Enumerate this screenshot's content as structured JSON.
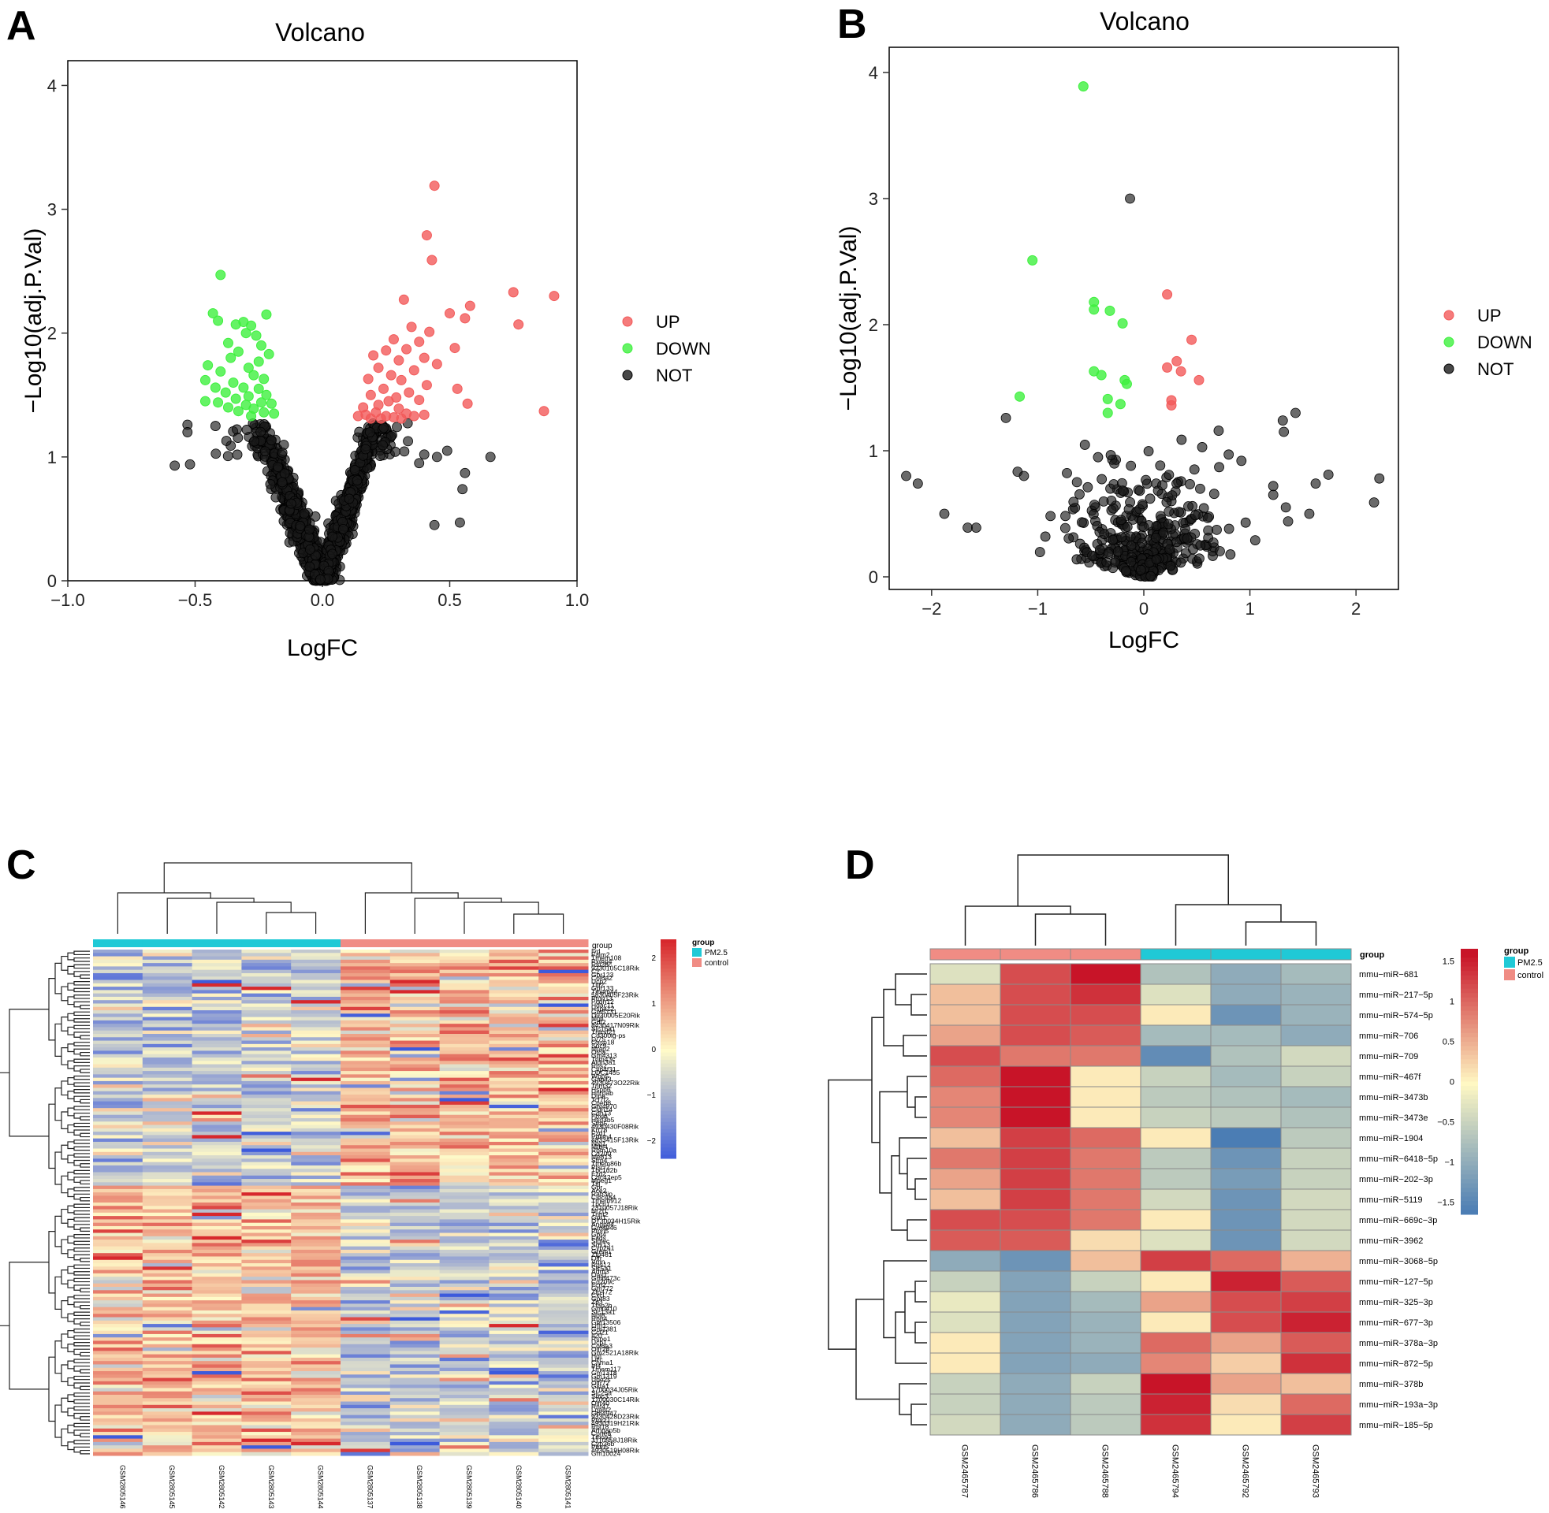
{
  "panels": {
    "A": {
      "label": "A"
    },
    "B": {
      "label": "B"
    },
    "C": {
      "label": "C"
    },
    "D": {
      "label": "D"
    }
  },
  "colors": {
    "up": "#f25a5a",
    "down": "#3ef03e",
    "not": "#1a1a1a",
    "pm25": "#20c9d6",
    "control": "#f08c84"
  },
  "chart_data": [
    {
      "id": "A",
      "type": "scatter",
      "title": "Volcano",
      "xlabel": "LogFC",
      "ylabel": "−Log10(adj.P.Val)",
      "xlim": [
        -1.0,
        1.0
      ],
      "ylim": [
        0,
        4.2
      ],
      "xticks": [
        "−1.0",
        "−0.5",
        "0.0",
        "0.5",
        "1.0"
      ],
      "xtick_values": [
        -1.0,
        -0.5,
        0.0,
        0.5,
        1.0
      ],
      "yticks": [
        "0",
        "1",
        "2",
        "3",
        "4"
      ],
      "ytick_values": [
        0,
        1,
        2,
        3,
        4
      ],
      "legend": [
        "UP",
        "DOWN",
        "NOT"
      ],
      "legend_position": "right",
      "series": [
        {
          "name": "UP",
          "points": [
            [
              0.44,
              3.19
            ],
            [
              0.41,
              2.79
            ],
            [
              0.43,
              2.59
            ],
            [
              0.75,
              2.33
            ],
            [
              0.91,
              2.3
            ],
            [
              0.32,
              2.27
            ],
            [
              0.58,
              2.22
            ],
            [
              0.5,
              2.16
            ],
            [
              0.56,
              2.12
            ],
            [
              0.77,
              2.07
            ],
            [
              0.35,
              2.05
            ],
            [
              0.42,
              2.01
            ],
            [
              0.28,
              1.95
            ],
            [
              0.38,
              1.93
            ],
            [
              0.33,
              1.87
            ],
            [
              0.25,
              1.86
            ],
            [
              0.52,
              1.88
            ],
            [
              0.4,
              1.8
            ],
            [
              0.3,
              1.78
            ],
            [
              0.2,
              1.82
            ],
            [
              0.45,
              1.75
            ],
            [
              0.36,
              1.7
            ],
            [
              0.22,
              1.72
            ],
            [
              0.27,
              1.66
            ],
            [
              0.31,
              1.62
            ],
            [
              0.18,
              1.63
            ],
            [
              0.41,
              1.58
            ],
            [
              0.24,
              1.55
            ],
            [
              0.34,
              1.52
            ],
            [
              0.53,
              1.55
            ],
            [
              0.29,
              1.48
            ],
            [
              0.19,
              1.5
            ],
            [
              0.26,
              1.45
            ],
            [
              0.38,
              1.46
            ],
            [
              0.22,
              1.42
            ],
            [
              0.16,
              1.4
            ],
            [
              0.3,
              1.39
            ],
            [
              0.57,
              1.43
            ],
            [
              0.87,
              1.37
            ],
            [
              0.21,
              1.36
            ],
            [
              0.33,
              1.35
            ],
            [
              0.25,
              1.33
            ],
            [
              0.17,
              1.34
            ],
            [
              0.4,
              1.34
            ],
            [
              0.28,
              1.32
            ],
            [
              0.14,
              1.33
            ],
            [
              0.36,
              1.33
            ],
            [
              0.23,
              1.31
            ],
            [
              0.19,
              1.31
            ],
            [
              0.31,
              1.31
            ]
          ]
        },
        {
          "name": "DOWN",
          "points": [
            [
              -0.4,
              2.47
            ],
            [
              -0.43,
              2.16
            ],
            [
              -0.22,
              2.15
            ],
            [
              -0.34,
              2.07
            ],
            [
              -0.31,
              2.09
            ],
            [
              -0.41,
              2.1
            ],
            [
              -0.28,
              2.06
            ],
            [
              -0.3,
              2.0
            ],
            [
              -0.26,
              1.98
            ],
            [
              -0.37,
              1.92
            ],
            [
              -0.24,
              1.9
            ],
            [
              -0.33,
              1.85
            ],
            [
              -0.21,
              1.83
            ],
            [
              -0.36,
              1.8
            ],
            [
              -0.25,
              1.77
            ],
            [
              -0.45,
              1.74
            ],
            [
              -0.29,
              1.72
            ],
            [
              -0.4,
              1.69
            ],
            [
              -0.27,
              1.66
            ],
            [
              -0.46,
              1.62
            ],
            [
              -0.23,
              1.63
            ],
            [
              -0.35,
              1.6
            ],
            [
              -0.31,
              1.56
            ],
            [
              -0.42,
              1.56
            ],
            [
              -0.25,
              1.55
            ],
            [
              -0.38,
              1.52
            ],
            [
              -0.22,
              1.5
            ],
            [
              -0.29,
              1.49
            ],
            [
              -0.34,
              1.47
            ],
            [
              -0.24,
              1.44
            ],
            [
              -0.41,
              1.44
            ],
            [
              -0.46,
              1.45
            ],
            [
              -0.3,
              1.42
            ],
            [
              -0.2,
              1.43
            ],
            [
              -0.37,
              1.4
            ],
            [
              -0.27,
              1.39
            ],
            [
              -0.33,
              1.37
            ],
            [
              -0.23,
              1.36
            ],
            [
              -0.19,
              1.35
            ],
            [
              -0.28,
              1.33
            ]
          ]
        }
      ],
      "not_series": {
        "name": "NOT",
        "cloud": true,
        "extra_points": [
          [
            -0.58,
            0.93
          ],
          [
            -0.52,
            0.94
          ],
          [
            -0.53,
            1.26
          ],
          [
            -0.53,
            1.2
          ],
          [
            -0.42,
            1.25
          ],
          [
            0.56,
            0.87
          ],
          [
            0.44,
            0.45
          ],
          [
            0.54,
            0.47
          ],
          [
            0.55,
            0.74
          ],
          [
            0.66,
            1.0
          ],
          [
            0.49,
            1.05
          ],
          [
            0.45,
            1.0
          ],
          [
            0.4,
            1.02
          ],
          [
            0.38,
            0.95
          ]
        ]
      }
    },
    {
      "id": "B",
      "type": "scatter",
      "title": "Volcano",
      "xlabel": "LogFC",
      "ylabel": "−Log10(adj.P.Val)",
      "xlim": [
        -2.4,
        2.4
      ],
      "ylim": [
        -0.1,
        4.2
      ],
      "xticks": [
        "−2",
        "−1",
        "0",
        "1",
        "2"
      ],
      "xtick_values": [
        -2,
        -1,
        0,
        1,
        2
      ],
      "yticks": [
        "0",
        "1",
        "2",
        "3",
        "4"
      ],
      "ytick_values": [
        0,
        1,
        2,
        3,
        4
      ],
      "legend": [
        "UP",
        "DOWN",
        "NOT"
      ],
      "legend_position": "right",
      "series": [
        {
          "name": "UP",
          "points": [
            [
              0.22,
              2.24
            ],
            [
              0.45,
              1.88
            ],
            [
              0.31,
              1.71
            ],
            [
              0.35,
              1.63
            ],
            [
              0.22,
              1.66
            ],
            [
              0.52,
              1.56
            ],
            [
              0.26,
              1.4
            ],
            [
              0.26,
              1.36
            ]
          ]
        },
        {
          "name": "DOWN",
          "points": [
            [
              -0.57,
              3.89
            ],
            [
              -1.05,
              2.51
            ],
            [
              -0.47,
              2.18
            ],
            [
              -0.47,
              2.12
            ],
            [
              -0.32,
              2.11
            ],
            [
              -0.2,
              2.01
            ],
            [
              -0.47,
              1.63
            ],
            [
              -0.4,
              1.6
            ],
            [
              -0.18,
              1.56
            ],
            [
              -0.16,
              1.53
            ],
            [
              -1.17,
              1.43
            ],
            [
              -0.34,
              1.41
            ],
            [
              -0.22,
              1.37
            ],
            [
              -0.34,
              1.3
            ]
          ]
        }
      ],
      "not_series": {
        "name": "NOT",
        "cloud": true,
        "extra_points": [
          [
            -0.13,
            3.0
          ],
          [
            -2.24,
            0.8
          ],
          [
            -2.13,
            0.74
          ],
          [
            -1.88,
            0.5
          ],
          [
            -1.66,
            0.39
          ],
          [
            -1.58,
            0.39
          ],
          [
            -1.3,
            1.26
          ],
          [
            -1.13,
            0.8
          ],
          [
            1.22,
            0.72
          ],
          [
            1.32,
            1.15
          ],
          [
            1.43,
            1.3
          ],
          [
            1.31,
            1.24
          ],
          [
            2.22,
            0.78
          ],
          [
            2.17,
            0.59
          ],
          [
            1.74,
            0.81
          ],
          [
            1.62,
            0.74
          ],
          [
            1.56,
            0.5
          ],
          [
            1.36,
            0.44
          ],
          [
            1.22,
            0.65
          ],
          [
            0.92,
            0.92
          ],
          [
            0.71,
            0.87
          ],
          [
            0.8,
            0.97
          ],
          [
            0.96,
            0.43
          ],
          [
            1.05,
            0.29
          ]
        ]
      }
    },
    {
      "id": "C",
      "type": "heatmap",
      "columns": [
        "GSM2805146",
        "GSM2805145",
        "GSM2805142",
        "GSM2805143",
        "GSM2805144",
        "GSM2805137",
        "GSM2805138",
        "GSM2805139",
        "GSM2805140",
        "GSM2805141"
      ],
      "column_groups": [
        "PM2.5",
        "PM2.5",
        "PM2.5",
        "PM2.5",
        "PM2.5",
        "control",
        "control",
        "control",
        "control",
        "control"
      ],
      "group_label": "group",
      "legend_groups": [
        "PM2.5",
        "control"
      ],
      "legend_title": "group",
      "colorbar_ticks": [
        "2",
        "1",
        "0",
        "−1",
        "−2"
      ],
      "colorbar_tick_values": [
        2,
        1,
        0,
        -1,
        -2
      ],
      "row_labels": [
        "Ivd",
        "Faim2",
        "Tmem108",
        "Pxmp4",
        "Rsl28c",
        "9230105C18Rik",
        "C2",
        "Gpr123",
        "Col6a2",
        "Ucp2",
        "Ttll2",
        "Gpr133",
        "Tmem44",
        "5830405F23Rik",
        "Ptpn13",
        "Pcdh12",
        "Hdac11",
        "Hspa12",
        "Gm5131",
        "D930005E20Rik",
        "Mgll",
        "Gdf2",
        "8430417N09Rik",
        "Slc16a1",
        "Tnfrsf21",
        "Cd300lg-ps",
        "Ly75",
        "Casp18",
        "Snc9",
        "Mtap2",
        "Otoa",
        "Gm4313",
        "Trim43c",
        "Aldh3a1",
        "Rps2",
        "Cyp4f31",
        "LOC1455",
        "Wbp5",
        "Gap43",
        "4930473O22Rik",
        "Trim32",
        "Hspb6",
        "Hnrpab",
        "Dtna",
        "Tcf7l2",
        "Cpeb8",
        "Gm4970",
        "Cldn14",
        "Cdh13",
        "Fbxl6",
        "Hsd3b5",
        "Sfrp5",
        "4930430F08Rik",
        "Krt78",
        "Fzd1",
        "Pdlim4",
        "4833415F13Rik",
        "Nrg1",
        "Mtbl4",
        "Rbm10a",
        "Cd200",
        "Me813",
        "Sfrp4",
        "Tmem86b",
        "Plscr2",
        "Tbc1d2b",
        "Fzd2",
        "Cdc42ep5",
        "Mpeg1",
        "Ttll",
        "Gpr",
        "Ace2",
        "Rab3ip",
        "Clec4a4",
        "Tmem912",
        "Tpcn1",
        "2310057J18Rik",
        "Nr2f1",
        "Tnnt2",
        "Gpr1",
        "D730034H15Rik",
        "Angptl4",
        "Gm4946",
        "Ptpn5",
        "Gpr4",
        "Fads",
        "Siglec",
        "Sox13",
        "Cyp2e1",
        "Grem1",
        "Zfp461",
        "Olfr",
        "Vmn",
        "Rgs12",
        "Slc5a1",
        "Adrb3",
        "Oas1",
        "Gm6473c",
        "Cd209c",
        "Fcrl2",
        "Gm772",
        "Zfp472",
        "Cxcl",
        "Gpr83",
        "Zp3",
        "Tfap2b",
        "Gm0410",
        "Slc13a1",
        "Nol8",
        "Rbp4",
        "Gm13506",
        "Lrfn1",
        "Gm1381",
        "Ccl21",
        "Il20",
        "Rspo1",
        "Ucp1",
        "Col6a3",
        "Olfr28",
        "Gm2521A18Rik",
        "Hgf",
        "Lrrc",
        "Chrna1",
        "Irf4",
        "Tmem117",
        "Gm1318",
        "Gm1319",
        "Ube2s",
        "Olfr72",
        "Gsta1",
        "1700034J05Rik",
        "Slc25a",
        "Smc3",
        "1700030C14Rik",
        "Olfr40",
        "Rnf47",
        "Lgals2",
        "Gm4947",
        "9330428D23Rik",
        "Ptprz1",
        "4930319H21Rik",
        "Rpl18",
        "Arhgap5b",
        "Cpne6",
        "Tmco2",
        "3110558J18Rik",
        "Cyp26b",
        "Ptpn5",
        "4930519H08Rik",
        "Gm10024"
      ],
      "row_labels_note": "dense gene row labels, many illegible; a representative subset is listed",
      "n_rows": 150,
      "n_cols": 10
    },
    {
      "id": "D",
      "type": "heatmap",
      "columns": [
        "GSM2465787",
        "GSM2465786",
        "GSM2465788",
        "GSM2465794",
        "GSM2465792",
        "GSM2465793"
      ],
      "column_groups": [
        "control",
        "control",
        "control",
        "PM2.5",
        "PM2.5",
        "PM2.5"
      ],
      "group_label": "group",
      "legend_groups": [
        "PM2.5",
        "control"
      ],
      "legend_title": "group",
      "colorbar_ticks": [
        "1.5",
        "1",
        "0.5",
        "0",
        "−0.5",
        "−1",
        "−1.5"
      ],
      "colorbar_tick_values": [
        1.5,
        1,
        0.5,
        0,
        -0.5,
        -1,
        -1.5
      ],
      "rows": [
        "mmu−miR−681",
        "mmu−miR−217−5p",
        "mmu−miR−574−5p",
        "mmu−miR−706",
        "mmu−miR−709",
        "mmu−miR−467f",
        "mmu−miR−3473b",
        "mmu−miR−3473e",
        "mmu−miR−1904",
        "mmu−miR−6418−5p",
        "mmu−miR−202−3p",
        "mmu−miR−5119",
        "mmu−miR−669c−3p",
        "mmu−miR−3962",
        "mmu−miR−3068−5p",
        "mmu−miR−127−5p",
        "mmu−miR−325−3p",
        "mmu−miR−677−3p",
        "mmu−miR−378a−3p",
        "mmu−miR−872−5p",
        "mmu−miR−378b",
        "mmu−miR−193a−3p",
        "mmu−miR−185−5p"
      ],
      "values": [
        [
          -0.3,
          1.2,
          1.6,
          -0.7,
          -1.0,
          -0.8
        ],
        [
          0.4,
          1.2,
          1.4,
          -0.3,
          -1.0,
          -0.9
        ],
        [
          0.4,
          1.2,
          1.2,
          0.1,
          -1.3,
          -0.9
        ],
        [
          0.6,
          1.2,
          1.1,
          -0.8,
          -0.8,
          -1.0
        ],
        [
          1.2,
          0.9,
          0.9,
          -1.4,
          -0.7,
          -0.4
        ],
        [
          1.0,
          1.6,
          0.1,
          -0.5,
          -0.8,
          -0.5
        ],
        [
          0.8,
          1.7,
          0.1,
          -0.6,
          -0.7,
          -0.8
        ],
        [
          0.8,
          1.7,
          0.1,
          -0.5,
          -0.6,
          -0.7
        ],
        [
          0.4,
          1.3,
          1.0,
          0.1,
          -1.6,
          -0.6
        ],
        [
          0.9,
          1.3,
          0.9,
          -0.6,
          -1.3,
          -0.5
        ],
        [
          0.6,
          1.3,
          0.9,
          -0.6,
          -1.2,
          -0.5
        ],
        [
          0.4,
          1.3,
          0.9,
          -0.4,
          -1.3,
          -0.4
        ],
        [
          1.2,
          1.2,
          0.9,
          0.1,
          -1.3,
          -0.4
        ],
        [
          1.1,
          1.1,
          0.2,
          -0.3,
          -1.3,
          -0.4
        ],
        [
          -1.0,
          -1.3,
          0.4,
          1.3,
          1.0,
          0.5
        ],
        [
          -0.5,
          -1.1,
          -0.5,
          0.1,
          1.5,
          1.1
        ],
        [
          -0.2,
          -1.1,
          -0.8,
          0.6,
          1.2,
          1.3
        ],
        [
          -0.3,
          -1.1,
          -0.9,
          0.1,
          1.2,
          1.5
        ],
        [
          0.1,
          -1.1,
          -0.9,
          1.0,
          0.6,
          1.1
        ],
        [
          0.1,
          -1.1,
          -1.0,
          0.8,
          0.3,
          1.4
        ],
        [
          -0.5,
          -1.0,
          -0.5,
          1.7,
          0.6,
          0.4
        ],
        [
          -0.5,
          -1.0,
          -0.6,
          1.5,
          0.2,
          1.0
        ],
        [
          -0.4,
          -1.0,
          -0.6,
          1.4,
          0.1,
          1.3
        ]
      ]
    }
  ]
}
